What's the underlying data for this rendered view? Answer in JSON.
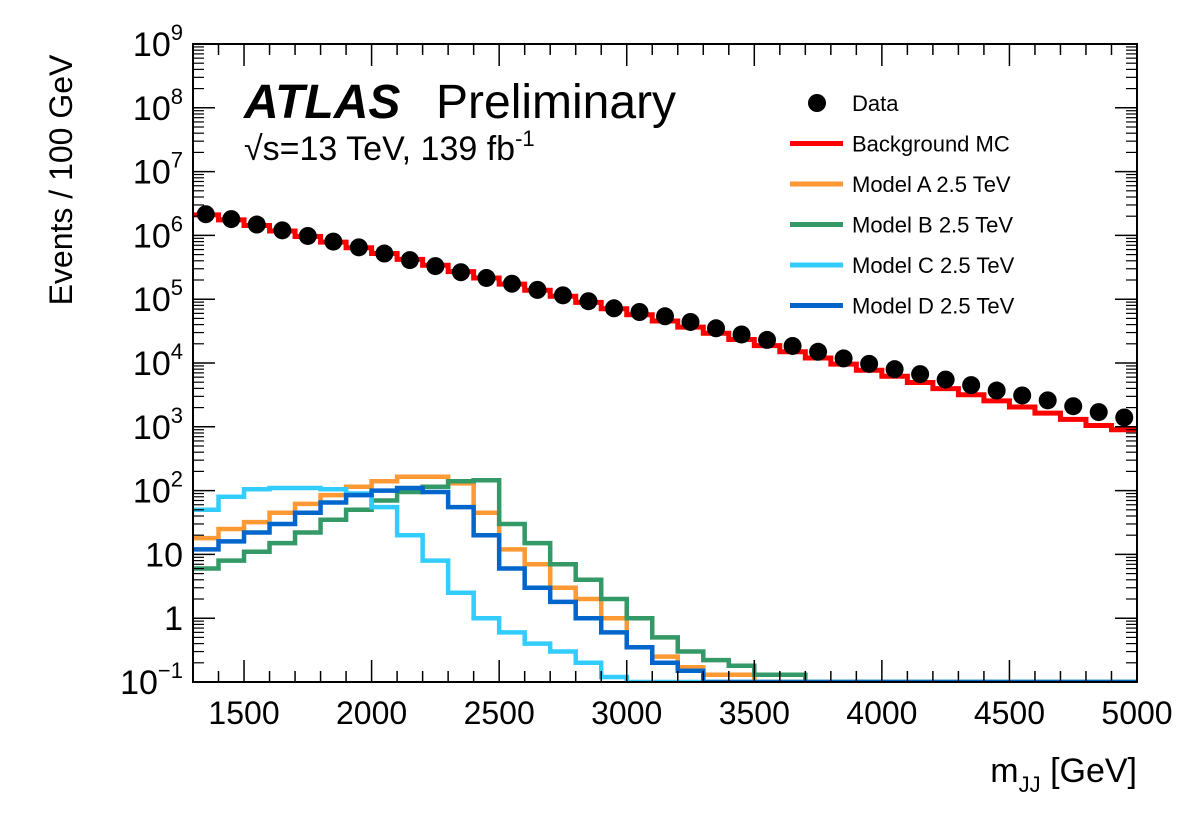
{
  "chart_data": {
    "type": "line",
    "title": "",
    "brand": {
      "bold": "ATLAS",
      "normal": "Preliminary"
    },
    "energy_label": {
      "sqrt": "√s",
      "main": "=13 TeV, 139 fb",
      "sup": "-1"
    },
    "xlabel": {
      "main": "m",
      "sub": "JJ",
      "unit": " [GeV]"
    },
    "ylabel": "Events / 100 GeV",
    "x_range": [
      1300,
      5000
    ],
    "y_range": [
      0.1,
      1000000000
    ],
    "y_scale": "log",
    "x_ticks": [
      {
        "value": 1500,
        "label": "1500"
      },
      {
        "value": 2000,
        "label": "2000"
      },
      {
        "value": 2500,
        "label": "2500"
      },
      {
        "value": 3000,
        "label": "3000"
      },
      {
        "value": 3500,
        "label": "3500"
      },
      {
        "value": 4000,
        "label": "4000"
      },
      {
        "value": 4500,
        "label": "4500"
      },
      {
        "value": 5000,
        "label": "5000"
      }
    ],
    "y_ticks": [
      {
        "value": 0.1,
        "label": "10",
        "sup": "−1"
      },
      {
        "value": 1,
        "label": "1",
        "sup": ""
      },
      {
        "value": 10,
        "label": "10",
        "sup": ""
      },
      {
        "value": 100,
        "label": "10",
        "sup": "2"
      },
      {
        "value": 1000,
        "label": "10",
        "sup": "3"
      },
      {
        "value": 10000,
        "label": "10",
        "sup": "4"
      },
      {
        "value": 100000,
        "label": "10",
        "sup": "5"
      },
      {
        "value": 1000000,
        "label": "10",
        "sup": "6"
      },
      {
        "value": 10000000,
        "label": "10",
        "sup": "7"
      },
      {
        "value": 100000000,
        "label": "10",
        "sup": "8"
      },
      {
        "value": 1000000000,
        "label": "10",
        "sup": "9"
      }
    ],
    "legend_position": "top-right",
    "bin_edges": [
      1300,
      1400,
      1500,
      1600,
      1700,
      1800,
      1900,
      2000,
      2100,
      2200,
      2300,
      2400,
      2500,
      2600,
      2700,
      2800,
      2900,
      3000,
      3100,
      3200,
      3300,
      3400,
      3500,
      3600,
      3700,
      3800,
      3900,
      4000,
      4100,
      4200,
      4300,
      4400,
      4500,
      4600,
      4700,
      4800,
      4900,
      5000
    ],
    "series": [
      {
        "name": "Background MC",
        "kind": "hist",
        "color": "#ff0000",
        "values": [
          2100000,
          1750000,
          1430000,
          1170000,
          960000,
          785000,
          640000,
          520000,
          420000,
          340000,
          270000,
          215000,
          172000,
          138000,
          111000,
          89000,
          71000,
          57000,
          45500,
          36500,
          29200,
          23400,
          18700,
          15000,
          12000,
          9600,
          7700,
          6200,
          4950,
          3970,
          3180,
          2550,
          2040,
          1640,
          1310,
          1050,
          900
        ]
      },
      {
        "name": "Model A 2.5 TeV",
        "kind": "hist",
        "color": "#ff9933",
        "values": [
          18,
          25,
          32,
          45,
          62,
          85,
          115,
          140,
          165,
          165,
          130,
          45,
          12,
          7,
          3,
          2,
          1,
          0.35,
          0.25,
          0.17,
          0.13,
          0.13,
          0.1,
          0.1,
          0.1,
          0.1,
          0.1,
          0.1,
          0.1,
          0.1,
          0.1,
          0.1,
          0.1,
          0.1,
          0.1,
          0.1,
          0.1
        ]
      },
      {
        "name": "Model B 2.5 TeV",
        "kind": "hist",
        "color": "#339966",
        "values": [
          6,
          8,
          11,
          15,
          22,
          35,
          50,
          70,
          95,
          115,
          140,
          145,
          30,
          15,
          7,
          4,
          2,
          1,
          0.5,
          0.3,
          0.22,
          0.18,
          0.13,
          0.13,
          0.1,
          0.1,
          0.1,
          0.1,
          0.1,
          0.1,
          0.1,
          0.1,
          0.1,
          0.1,
          0.1,
          0.1,
          0.1
        ]
      },
      {
        "name": "Model C 2.5 TeV",
        "kind": "hist",
        "color": "#33ccff",
        "values": [
          50,
          80,
          105,
          110,
          110,
          105,
          90,
          55,
          20,
          8,
          2.5,
          1,
          0.6,
          0.4,
          0.3,
          0.2,
          0.12,
          0.1,
          0.1,
          0.1,
          0.1,
          0.1,
          0.1,
          0.1,
          0.1,
          0.1,
          0.1,
          0.1,
          0.1,
          0.1,
          0.1,
          0.1,
          0.1,
          0.1,
          0.1,
          0.1,
          0.1
        ]
      },
      {
        "name": "Model D 2.5 TeV",
        "kind": "hist",
        "color": "#0066cc",
        "values": [
          12,
          16,
          22,
          30,
          45,
          65,
          85,
          100,
          110,
          95,
          55,
          20,
          6,
          3,
          1.8,
          1,
          0.6,
          0.35,
          0.2,
          0.15,
          0.1,
          0.1,
          0.1,
          0.1,
          0.1,
          0.1,
          0.1,
          0.1,
          0.1,
          0.1,
          0.1,
          0.1,
          0.1,
          0.1,
          0.1,
          0.1,
          0.1
        ]
      },
      {
        "name": "Data",
        "kind": "points",
        "color": "#000000",
        "x": [
          1350,
          1450,
          1550,
          1650,
          1750,
          1850,
          1950,
          2050,
          2150,
          2250,
          2350,
          2450,
          2550,
          2650,
          2750,
          2850,
          2950,
          3050,
          3150,
          3250,
          3350,
          3450,
          3550,
          3650,
          3750,
          3850,
          3950,
          4050,
          4150,
          4250,
          4350,
          4450,
          4550,
          4650,
          4750,
          4850,
          4950
        ],
        "values": [
          2150000,
          1800000,
          1480000,
          1200000,
          980000,
          800000,
          650000,
          520000,
          410000,
          330000,
          265000,
          215000,
          175000,
          140000,
          115000,
          93000,
          72000,
          63000,
          54000,
          44000,
          35000,
          28000,
          23000,
          18500,
          15000,
          11800,
          9700,
          8000,
          6700,
          5500,
          4500,
          3700,
          3100,
          2600,
          2100,
          1700,
          1400
        ]
      }
    ]
  }
}
